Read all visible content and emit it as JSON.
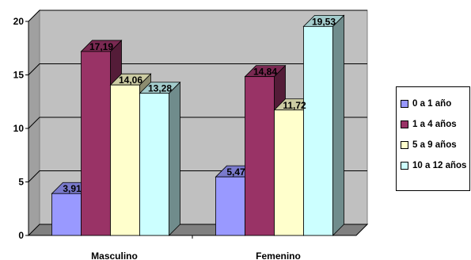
{
  "chart_data": {
    "type": "bar",
    "categories": [
      "Masculino",
      "Femenino"
    ],
    "series": [
      {
        "name": "0 a 1 año",
        "values": [
          3.91,
          5.47
        ],
        "labels": [
          "3,91",
          "5,47"
        ],
        "color": "#9999ff"
      },
      {
        "name": "1 a 4 años",
        "values": [
          17.19,
          14.84
        ],
        "labels": [
          "17,19",
          "14,84"
        ],
        "color": "#993366"
      },
      {
        "name": "5 a 9 años",
        "values": [
          14.06,
          11.72
        ],
        "labels": [
          "14,06",
          "11,72"
        ],
        "color": "#ffffcc"
      },
      {
        "name": "10 a 12 años",
        "values": [
          13.28,
          19.53
        ],
        "labels": [
          "13,28",
          "19,53"
        ],
        "color": "#ccffff"
      }
    ],
    "ylim": [
      0,
      20
    ],
    "yticks": [
      0,
      5,
      10,
      15,
      20
    ],
    "grid": true,
    "legend_position": "right",
    "wall_color": "#c0c0c0",
    "floor_color": "#808080"
  }
}
